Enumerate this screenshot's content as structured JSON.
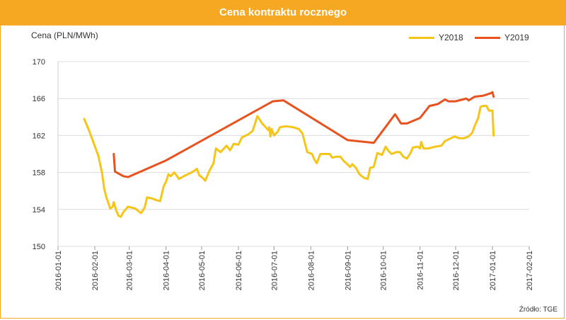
{
  "header": {
    "title": "Cena kontraktu rocznego"
  },
  "source": "Źródło: TGE",
  "chart_data": {
    "type": "line",
    "ylabel": "Cena (PLN/MWh)",
    "xlabel": "",
    "ylim": [
      150,
      170
    ],
    "yticks": [
      150,
      154,
      158,
      162,
      166,
      170
    ],
    "xlim": [
      "2016-01-01",
      "2017-02-01"
    ],
    "xticks": [
      "2016-01-01",
      "2016-02-01",
      "2016-03-01",
      "2016-04-01",
      "2016-05-01",
      "2016-06-01",
      "2016-07-01",
      "2016-08-01",
      "2016-09-01",
      "2016-10-01",
      "2016-11-01",
      "2016-12-01",
      "2017-01-01",
      "2017-02-01"
    ],
    "grid": true,
    "legend_position": "top-right",
    "series": [
      {
        "name": "Y2018",
        "color": "#f5c518",
        "points": [
          [
            "2016-01-23",
            163.8
          ],
          [
            "2016-01-27",
            162.6
          ],
          [
            "2016-01-31",
            161.2
          ],
          [
            "2016-02-04",
            159.8
          ],
          [
            "2016-02-07",
            158.0
          ],
          [
            "2016-02-09",
            156.2
          ],
          [
            "2016-02-11",
            155.2
          ],
          [
            "2016-02-14",
            154.1
          ],
          [
            "2016-02-16",
            154.3
          ],
          [
            "2016-02-17",
            154.8
          ],
          [
            "2016-02-19",
            153.9
          ],
          [
            "2016-02-21",
            153.3
          ],
          [
            "2016-02-23",
            153.2
          ],
          [
            "2016-02-25",
            153.7
          ],
          [
            "2016-02-27",
            154.0
          ],
          [
            "2016-02-29",
            154.3
          ],
          [
            "2016-03-03",
            154.2
          ],
          [
            "2016-03-06",
            154.1
          ],
          [
            "2016-03-09",
            153.8
          ],
          [
            "2016-03-11",
            153.6
          ],
          [
            "2016-03-14",
            154.2
          ],
          [
            "2016-03-16",
            155.3
          ],
          [
            "2016-03-20",
            155.2
          ],
          [
            "2016-03-24",
            155.0
          ],
          [
            "2016-03-27",
            154.9
          ],
          [
            "2016-03-30",
            156.5
          ],
          [
            "2016-04-01",
            157.0
          ],
          [
            "2016-04-03",
            157.8
          ],
          [
            "2016-04-05",
            157.6
          ],
          [
            "2016-04-08",
            158.0
          ],
          [
            "2016-04-12",
            157.3
          ],
          [
            "2016-04-16",
            157.6
          ],
          [
            "2016-04-21",
            157.9
          ],
          [
            "2016-04-25",
            158.2
          ],
          [
            "2016-04-27",
            158.4
          ],
          [
            "2016-04-29",
            157.7
          ],
          [
            "2016-05-02",
            157.4
          ],
          [
            "2016-05-04",
            157.1
          ],
          [
            "2016-05-08",
            158.3
          ],
          [
            "2016-05-11",
            159.0
          ],
          [
            "2016-05-13",
            160.6
          ],
          [
            "2016-05-17",
            160.2
          ],
          [
            "2016-05-22",
            160.9
          ],
          [
            "2016-05-25",
            160.4
          ],
          [
            "2016-05-28",
            161.1
          ],
          [
            "2016-06-01",
            161.0
          ],
          [
            "2016-06-04",
            161.8
          ],
          [
            "2016-06-09",
            162.1
          ],
          [
            "2016-06-13",
            162.5
          ],
          [
            "2016-06-17",
            164.1
          ],
          [
            "2016-06-21",
            163.3
          ],
          [
            "2016-06-24",
            162.9
          ],
          [
            "2016-06-26",
            162.6
          ],
          [
            "2016-06-27",
            162.9
          ],
          [
            "2016-06-28",
            161.9
          ],
          [
            "2016-06-29",
            162.7
          ],
          [
            "2016-07-01",
            162.0
          ],
          [
            "2016-07-04",
            162.4
          ],
          [
            "2016-07-06",
            162.9
          ],
          [
            "2016-07-11",
            163.0
          ],
          [
            "2016-07-17",
            162.9
          ],
          [
            "2016-07-22",
            162.7
          ],
          [
            "2016-07-25",
            162.2
          ],
          [
            "2016-07-27",
            161.2
          ],
          [
            "2016-07-29",
            160.2
          ],
          [
            "2016-08-02",
            160.0
          ],
          [
            "2016-08-04",
            159.4
          ],
          [
            "2016-08-06",
            159.0
          ],
          [
            "2016-08-09",
            160.0
          ],
          [
            "2016-08-13",
            160.0
          ],
          [
            "2016-08-17",
            160.0
          ],
          [
            "2016-08-19",
            159.6
          ],
          [
            "2016-08-22",
            159.7
          ],
          [
            "2016-08-26",
            159.7
          ],
          [
            "2016-08-29",
            159.2
          ],
          [
            "2016-08-31",
            159.0
          ],
          [
            "2016-09-03",
            158.6
          ],
          [
            "2016-09-05",
            158.9
          ],
          [
            "2016-09-08",
            158.5
          ],
          [
            "2016-09-11",
            157.8
          ],
          [
            "2016-09-15",
            157.4
          ],
          [
            "2016-09-18",
            157.3
          ],
          [
            "2016-09-20",
            158.5
          ],
          [
            "2016-09-23",
            158.6
          ],
          [
            "2016-09-26",
            160.1
          ],
          [
            "2016-09-30",
            159.9
          ],
          [
            "2016-10-03",
            160.8
          ],
          [
            "2016-10-05",
            160.4
          ],
          [
            "2016-10-08",
            160.0
          ],
          [
            "2016-10-12",
            160.2
          ],
          [
            "2016-10-15",
            160.2
          ],
          [
            "2016-10-18",
            159.7
          ],
          [
            "2016-10-21",
            159.5
          ],
          [
            "2016-10-24",
            160.1
          ],
          [
            "2016-10-26",
            160.7
          ],
          [
            "2016-10-30",
            160.8
          ],
          [
            "2016-11-01",
            160.6
          ],
          [
            "2016-11-02",
            161.3
          ],
          [
            "2016-11-04",
            160.6
          ],
          [
            "2016-11-08",
            160.6
          ],
          [
            "2016-11-14",
            160.8
          ],
          [
            "2016-11-19",
            160.9
          ],
          [
            "2016-11-22",
            161.4
          ],
          [
            "2016-11-27",
            161.7
          ],
          [
            "2016-11-30",
            161.9
          ],
          [
            "2016-12-04",
            161.7
          ],
          [
            "2016-12-08",
            161.7
          ],
          [
            "2016-12-12",
            161.9
          ],
          [
            "2016-12-15",
            162.3
          ],
          [
            "2016-12-17",
            163.0
          ],
          [
            "2016-12-20",
            163.9
          ],
          [
            "2016-12-22",
            165.1
          ],
          [
            "2016-12-24",
            165.2
          ],
          [
            "2016-12-27",
            165.2
          ],
          [
            "2016-12-29",
            164.7
          ],
          [
            "2017-01-01",
            164.7
          ],
          [
            "2017-01-02",
            162.0
          ]
        ]
      },
      {
        "name": "Y2019",
        "color": "#e8521e",
        "points": [
          [
            "2016-02-17",
            160.0
          ],
          [
            "2016-02-18",
            158.1
          ],
          [
            "2016-02-25",
            157.6
          ],
          [
            "2016-02-29",
            157.5
          ],
          [
            "2016-04-01",
            159.3
          ],
          [
            "2016-06-30",
            165.7
          ],
          [
            "2016-07-09",
            165.8
          ],
          [
            "2016-09-01",
            161.5
          ],
          [
            "2016-09-23",
            161.2
          ],
          [
            "2016-10-11",
            164.3
          ],
          [
            "2016-10-16",
            163.3
          ],
          [
            "2016-10-21",
            163.3
          ],
          [
            "2016-11-01",
            163.9
          ],
          [
            "2016-11-09",
            165.2
          ],
          [
            "2016-11-16",
            165.4
          ],
          [
            "2016-11-22",
            165.9
          ],
          [
            "2016-11-25",
            165.7
          ],
          [
            "2016-12-01",
            165.7
          ],
          [
            "2016-12-07",
            165.9
          ],
          [
            "2016-12-10",
            166.0
          ],
          [
            "2016-12-12",
            165.8
          ],
          [
            "2016-12-17",
            166.2
          ],
          [
            "2016-12-24",
            166.3
          ],
          [
            "2016-12-31",
            166.6
          ],
          [
            "2017-01-01",
            166.7
          ],
          [
            "2017-01-02",
            166.2
          ]
        ]
      }
    ]
  }
}
